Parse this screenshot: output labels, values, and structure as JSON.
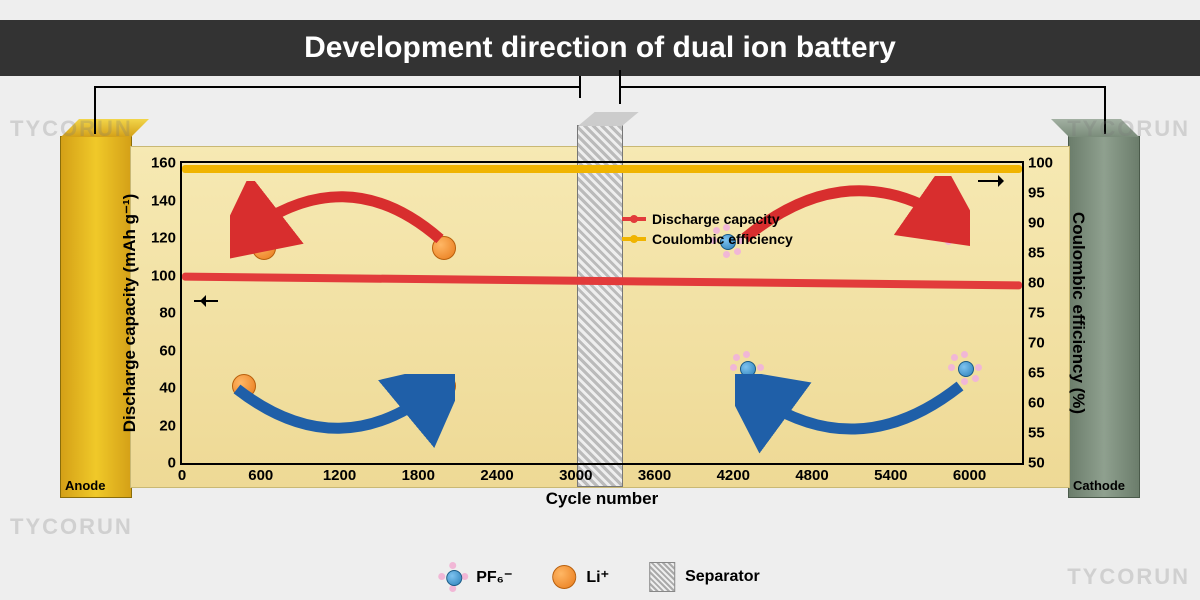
{
  "title": "Development direction of dual ion battery",
  "watermark": "TYCORUN",
  "electrodes": {
    "anode": "Anode",
    "cathode": "Cathode"
  },
  "chart": {
    "y_left": {
      "label": "Discharge capacity (mAh g⁻¹)",
      "ticks": [
        0,
        20,
        40,
        60,
        80,
        100,
        120,
        140,
        160
      ],
      "min": 0,
      "max": 160
    },
    "y_right": {
      "label": "Coulombic efficiency (%)",
      "ticks": [
        50,
        55,
        60,
        65,
        70,
        75,
        80,
        85,
        90,
        95,
        100
      ],
      "min": 50,
      "max": 100
    },
    "x": {
      "label": "Cycle number",
      "ticks": [
        0,
        600,
        1200,
        1800,
        2400,
        3000,
        3600,
        4200,
        4800,
        5400,
        6000
      ],
      "min": 0,
      "max": 6400
    },
    "series": {
      "capacity": {
        "label": "Discharge capacity",
        "color": "#e23b3b",
        "y_start": 97,
        "y_end": 90
      },
      "efficiency": {
        "label": "Coulombic efficiency",
        "color": "#f0b400",
        "y": 99
      }
    }
  },
  "legend": {
    "pf6": "PF₆⁻",
    "li": "Li⁺",
    "sep": "Separator"
  },
  "colors": {
    "title_bg": "#333333",
    "title_fg": "#ffffff",
    "page_bg": "#eeeeee",
    "anode": "#e5b91f",
    "cathode": "#7f917f",
    "electrolyte_top": "#f6e9b3",
    "electrolyte_bot": "#eed995",
    "li": "#e87a1a",
    "pf6": "#2a7fb8",
    "pf6_f": "#f1b7d6",
    "arrow_red": "#d82e2e",
    "arrow_blue": "#1f5fa8"
  }
}
